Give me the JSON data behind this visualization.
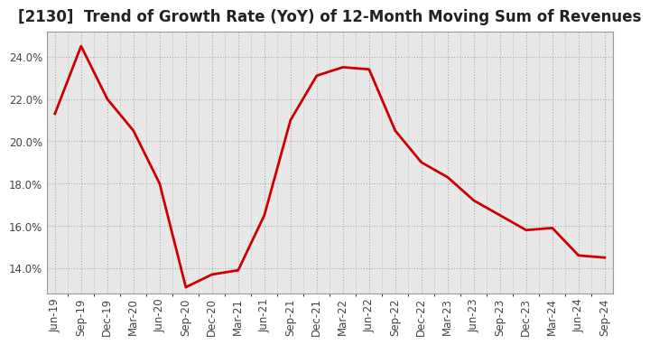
{
  "title": "[2130]  Trend of Growth Rate (YoY) of 12-Month Moving Sum of Revenues",
  "x_labels": [
    "Jun-19",
    "Sep-19",
    "Dec-19",
    "Mar-20",
    "Jun-20",
    "Sep-20",
    "Dec-20",
    "Mar-21",
    "Jun-21",
    "Sep-21",
    "Dec-21",
    "Mar-22",
    "Jun-22",
    "Sep-22",
    "Dec-22",
    "Mar-23",
    "Jun-23",
    "Sep-23",
    "Dec-23",
    "Mar-24",
    "Jun-24",
    "Sep-24"
  ],
  "y_values": [
    21.3,
    24.5,
    22.0,
    20.5,
    18.0,
    13.1,
    13.7,
    13.9,
    16.5,
    21.0,
    23.1,
    23.5,
    23.4,
    20.5,
    19.0,
    18.3,
    17.2,
    16.5,
    15.8,
    15.9,
    14.6,
    14.5
  ],
  "line_color": "#cc0000",
  "line_width": 2.0,
  "ylim": [
    12.8,
    25.2
  ],
  "yticks": [
    14.0,
    16.0,
    18.0,
    20.0,
    22.0,
    24.0
  ],
  "bg_color": "#ffffff",
  "plot_bg_color": "#e8e8e8",
  "title_fontsize": 12,
  "tick_fontsize": 8.5
}
